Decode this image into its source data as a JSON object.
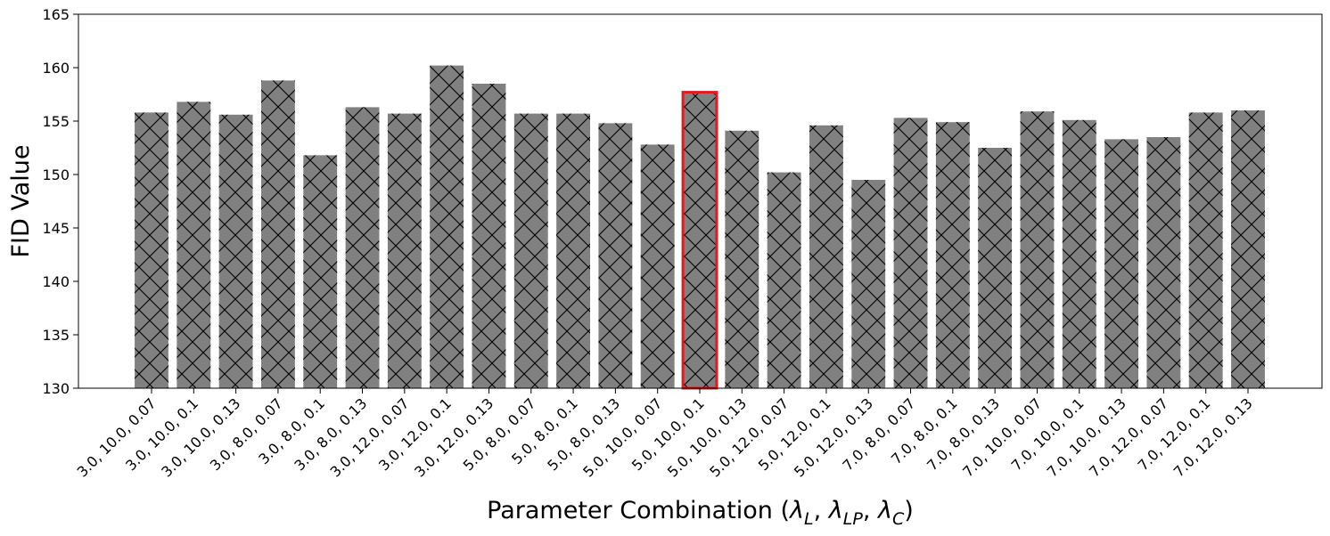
{
  "chart_data": {
    "type": "bar",
    "ylabel": "FID Value",
    "xlabel": {
      "prefix": "Parameter Combination (",
      "symbol": "λ",
      "subscripts": [
        "L",
        "LP",
        "C"
      ],
      "separator": ", ",
      "suffix": ")"
    },
    "ylim": [
      130,
      165
    ],
    "yticks": [
      "130",
      "135",
      "140",
      "145",
      "150",
      "155",
      "160",
      "165"
    ],
    "grid": false,
    "legend": "none",
    "bar_color": "#808080",
    "hatch": "x",
    "highlight_color": "#e41a1c",
    "highlight_index": 13,
    "categories": [
      "3.0, 10.0, 0.07",
      "3.0, 10.0, 0.1",
      "3.0, 10.0, 0.13",
      "3.0, 8.0, 0.07",
      "3.0, 8.0, 0.1",
      "3.0, 8.0, 0.13",
      "3.0, 12.0, 0.07",
      "3.0, 12.0, 0.1",
      "3.0, 12.0, 0.13",
      "5.0, 8.0, 0.07",
      "5.0, 8.0, 0.1",
      "5.0, 8.0, 0.13",
      "5.0, 10.0, 0.07",
      "5.0, 10.0, 0.1",
      "5.0, 10.0, 0.13",
      "5.0, 12.0, 0.07",
      "5.0, 12.0, 0.1",
      "5.0, 12.0, 0.13",
      "7.0, 8.0, 0.07",
      "7.0, 8.0, 0.1",
      "7.0, 8.0, 0.13",
      "7.0, 10.0, 0.07",
      "7.0, 10.0, 0.1",
      "7.0, 10.0, 0.13",
      "7.0, 12.0, 0.07",
      "7.0, 12.0, 0.1",
      "7.0, 12.0, 0.13"
    ],
    "values": [
      155.8,
      156.8,
      155.6,
      158.8,
      151.8,
      156.3,
      155.7,
      160.2,
      158.5,
      155.7,
      155.7,
      154.8,
      152.8,
      157.7,
      154.1,
      150.2,
      154.6,
      149.5,
      155.3,
      154.9,
      152.5,
      155.9,
      155.1,
      153.3,
      153.5,
      155.8,
      156.0
    ]
  }
}
